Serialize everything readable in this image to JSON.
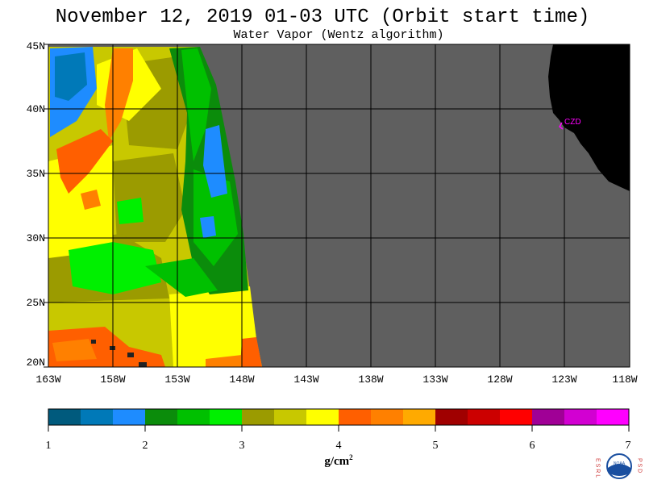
{
  "title": "November 12, 2019  01-03 UTC  (Orbit start time)",
  "subtitle": "Water Vapor (Wentz algorithm)",
  "lat_labels": [
    "45N",
    "40N",
    "35N",
    "30N",
    "25N",
    "20N"
  ],
  "lon_labels": [
    "163W",
    "158W",
    "153W",
    "148W",
    "143W",
    "138W",
    "133W",
    "128W",
    "123W",
    "118W"
  ],
  "colorbar": {
    "labels": [
      "1",
      "2",
      "3",
      "4",
      "5",
      "6",
      "7"
    ],
    "units": "g/cm",
    "units_exp": "2",
    "colors": [
      "#005a7d",
      "#0079b8",
      "#1e8cff",
      "#0b8c0b",
      "#00c000",
      "#00f000",
      "#9b9b00",
      "#c8c800",
      "#ffff00",
      "#ff5f00",
      "#ff8000",
      "#ffaa00",
      "#a00000",
      "#cc0000",
      "#ff0000",
      "#a00096",
      "#d200d2",
      "#ff00ff"
    ]
  },
  "station_label": "CZD",
  "colors": {
    "land": "#000000",
    "nodata": "#5f5f5f",
    "grid": "#000000"
  },
  "logo": {
    "left_letters": "ESRL",
    "right_letters": "PSD",
    "center": "NOAA"
  }
}
